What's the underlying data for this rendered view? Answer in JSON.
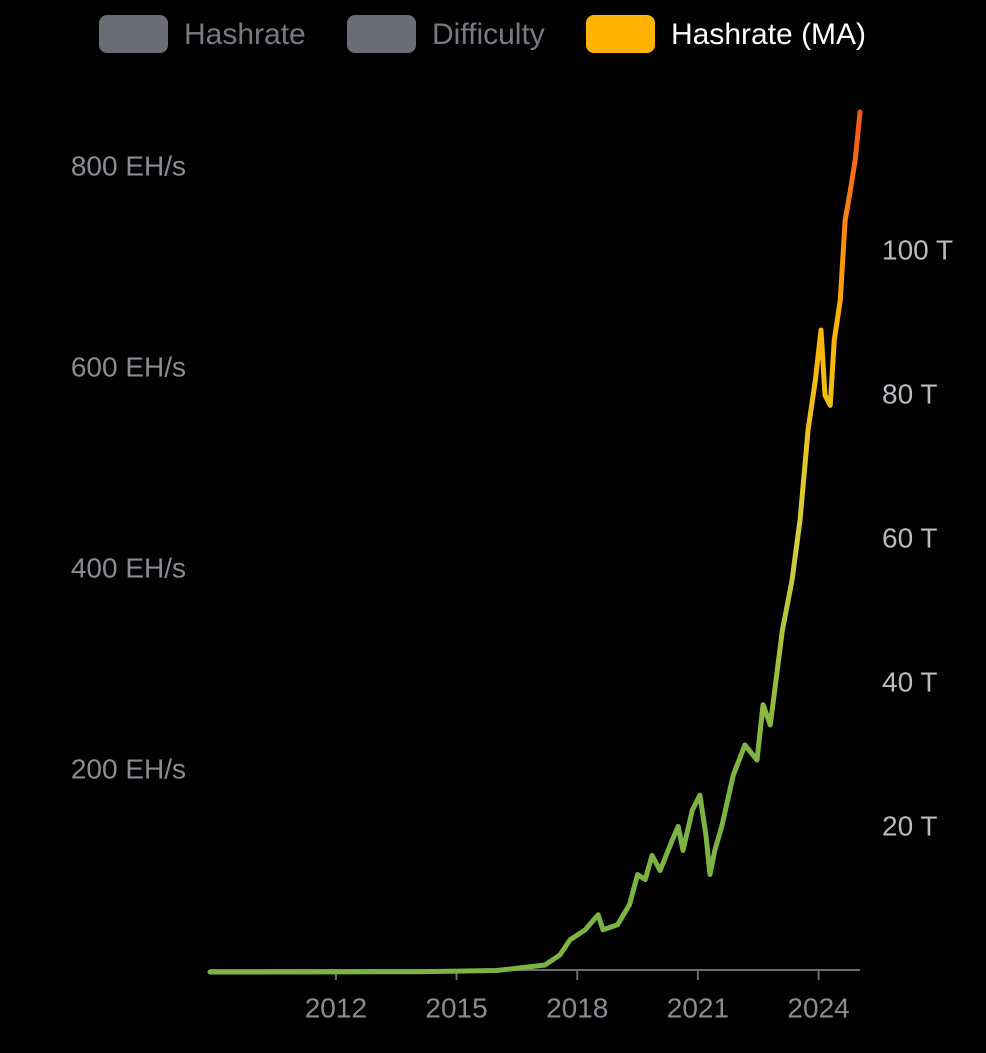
{
  "chart_data": {
    "type": "line",
    "series": [
      {
        "name": "Hashrate",
        "color": "#6b6d75",
        "hidden": true
      },
      {
        "name": "Difficulty",
        "color": "#6b6d75",
        "hidden": true,
        "axis": "y2"
      },
      {
        "name": "Hashrate (MA)",
        "color": "#ffb300",
        "line_gradient": [
          "#7cb342",
          "#7cb342",
          "#d4cf3a",
          "#ffb300",
          "#f4511e"
        ],
        "x": [
          2008.87,
          2012,
          2014,
          2016,
          2017.2,
          2017.57,
          2017.82,
          2018.2,
          2018.52,
          2018.64,
          2019.0,
          2019.3,
          2019.5,
          2019.69,
          2019.86,
          2020.06,
          2020.36,
          2020.51,
          2020.63,
          2020.86,
          2021.05,
          2021.2,
          2021.3,
          2021.42,
          2021.6,
          2021.88,
          2022.17,
          2022.47,
          2022.62,
          2022.8,
          2023.1,
          2023.34,
          2023.54,
          2023.74,
          2023.92,
          2024.06,
          2024.16,
          2024.29,
          2024.39,
          2024.54,
          2024.66,
          2024.79,
          2024.91,
          2025.03
        ],
        "values": [
          0,
          0.1,
          0.3,
          1.5,
          7,
          17,
          32,
          42,
          57,
          42,
          47,
          67,
          97,
          92,
          116,
          101,
          131,
          145,
          121,
          161,
          176,
          136,
          97,
          121,
          146,
          196,
          226,
          211,
          266,
          246,
          340,
          390,
          450,
          540,
          589,
          639,
          574,
          564,
          629,
          669,
          748,
          778,
          808,
          856
        ]
      }
    ],
    "xlim": [
      2008.87,
      2025.03
    ],
    "xticks": [
      2012,
      2015,
      2018,
      2021,
      2024
    ],
    "ylim": [
      0,
      860
    ],
    "yticks": [
      {
        "value": 200,
        "label": "200 EH/s"
      },
      {
        "value": 400,
        "label": "400 EH/s"
      },
      {
        "value": 600,
        "label": "600 EH/s"
      },
      {
        "value": 800,
        "label": "800 EH/s"
      }
    ],
    "y2lim": [
      0,
      120
    ],
    "y2ticks": [
      {
        "value": 20,
        "label": "20 T"
      },
      {
        "value": 40,
        "label": "40 T"
      },
      {
        "value": 60,
        "label": "60 T"
      },
      {
        "value": 80,
        "label": "80 T"
      },
      {
        "value": 100,
        "label": "100 T"
      }
    ]
  }
}
